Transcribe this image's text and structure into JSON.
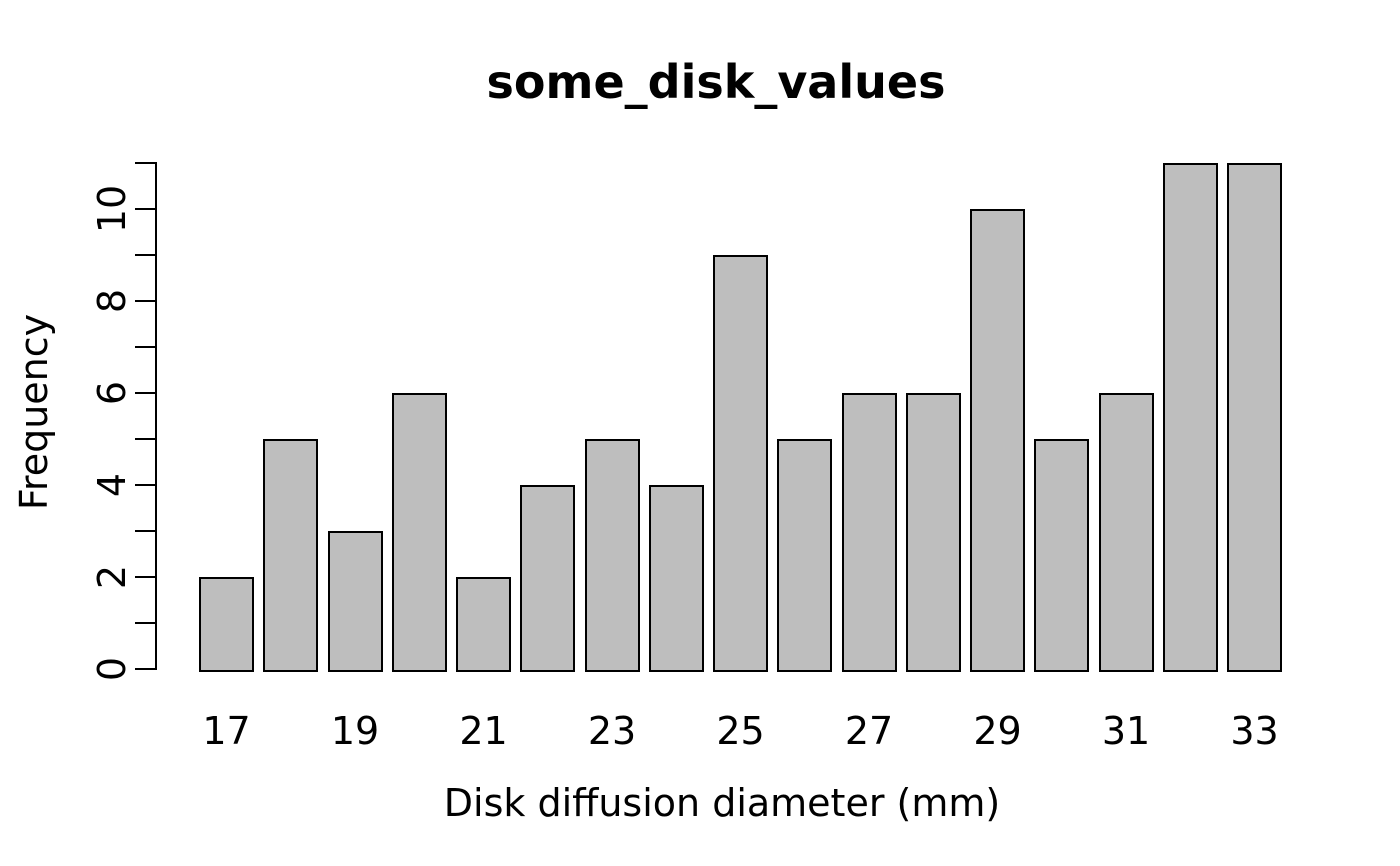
{
  "chart_data": {
    "type": "bar",
    "subtype": "histogram",
    "title": "some_disk_values",
    "xlabel": "Disk diffusion diameter (mm)",
    "ylabel": "Frequency",
    "categories": [
      17,
      18,
      19,
      20,
      21,
      22,
      23,
      24,
      25,
      26,
      27,
      28,
      29,
      30,
      31,
      32,
      33
    ],
    "values": [
      2,
      5,
      3,
      6,
      2,
      4,
      5,
      4,
      9,
      5,
      6,
      6,
      10,
      5,
      6,
      11,
      11
    ],
    "x_tick_labels": [
      "17",
      "19",
      "21",
      "23",
      "25",
      "27",
      "29",
      "31",
      "33"
    ],
    "y_tick_labels": [
      "0",
      "2",
      "4",
      "6",
      "8",
      "10"
    ],
    "y_tick_values": [
      0,
      2,
      4,
      6,
      8,
      10
    ],
    "y_minor_tick_step": 1,
    "ylim": [
      0,
      11
    ],
    "xlim": [
      16.5,
      33.5
    ],
    "grid": "off",
    "legend": "none",
    "colors": {
      "bar_fill": "#BEBEBE",
      "bar_border": "#000000",
      "axis": "#000000",
      "text": "#000000",
      "background": "#FFFFFF"
    }
  }
}
